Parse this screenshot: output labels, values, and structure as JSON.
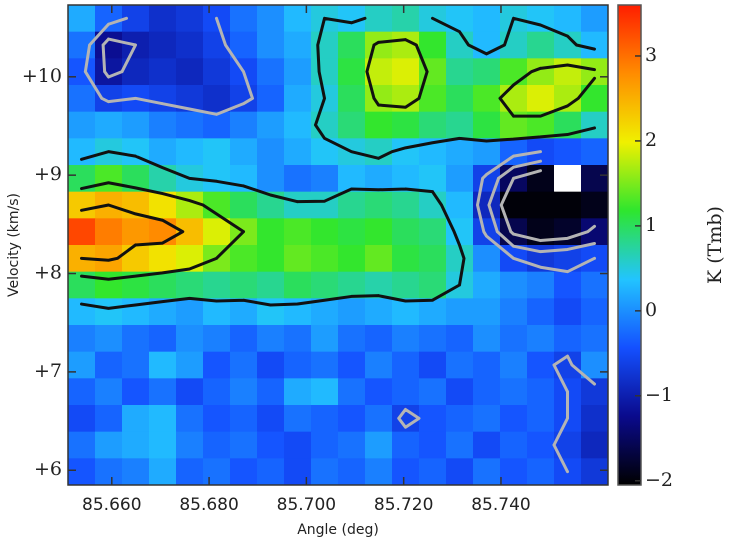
{
  "chart_data": {
    "type": "heatmap",
    "xlabel": "Angle (deg)",
    "ylabel": "Velocity (km/s)",
    "colorbar_label": "K (Tmb)",
    "xlim": [
      85.651,
      85.762
    ],
    "ylim": [
      5.85,
      10.73
    ],
    "zlim": [
      -2.05,
      3.6
    ],
    "xticks": [
      {
        "value": 85.66,
        "label": "85.660"
      },
      {
        "value": 85.68,
        "label": "85.680"
      },
      {
        "value": 85.7,
        "label": "85.700"
      },
      {
        "value": 85.72,
        "label": "85.720"
      },
      {
        "value": 85.74,
        "label": "85.740"
      }
    ],
    "yticks": [
      {
        "value": 6,
        "label": "+6"
      },
      {
        "value": 7,
        "label": "+7"
      },
      {
        "value": 8,
        "label": "+8"
      },
      {
        "value": 9,
        "label": "+9"
      },
      {
        "value": 10,
        "label": "+10"
      }
    ],
    "zticks": [
      3,
      2,
      1,
      0,
      {
        "value": -1,
        "label": "−1"
      },
      {
        "value": -2,
        "label": "−2"
      }
    ],
    "colormap": [
      "#000000",
      "#0a0a8c",
      "#1450ff",
      "#22c4ff",
      "#2ee62e",
      "#f0f000",
      "#ff8c00",
      "#ff1e00"
    ],
    "contours": [
      {
        "level": -1.5,
        "color": "#b4b4b4"
      },
      {
        "level": -1,
        "color": "#b4b4b4"
      },
      {
        "level": -0.5,
        "color": "#b4b4b4"
      },
      {
        "level": 0.5,
        "color": "#111111"
      },
      {
        "level": 1.5,
        "color": "#111111"
      },
      {
        "level": 2.5,
        "color": "#111111"
      }
    ],
    "values": [
      [
        0.2,
        -0.3,
        -0.6,
        -0.8,
        -0.7,
        -0.5,
        -0.2,
        0.0,
        0.3,
        0.5,
        0.4,
        0.6,
        0.7,
        0.5,
        0.4,
        0.3,
        0.5,
        0.4,
        0.3,
        0.1
      ],
      [
        -0.2,
        -1.2,
        -1.0,
        -0.9,
        -0.8,
        -0.6,
        -0.3,
        0.0,
        0.2,
        0.6,
        1.0,
        1.6,
        1.7,
        1.2,
        0.6,
        0.3,
        0.6,
        0.8,
        0.6,
        0.3
      ],
      [
        -0.4,
        -1.1,
        -0.9,
        -0.8,
        -0.9,
        -0.7,
        -0.5,
        -0.2,
        0.1,
        0.6,
        1.1,
        1.8,
        1.9,
        1.4,
        0.8,
        0.9,
        1.3,
        1.6,
        1.8,
        1.6
      ],
      [
        -0.2,
        -0.6,
        -0.5,
        -0.6,
        -0.7,
        -0.8,
        -0.6,
        -0.3,
        0.2,
        0.5,
        1.0,
        1.6,
        1.7,
        1.3,
        1.0,
        1.3,
        1.7,
        1.9,
        1.7,
        1.2
      ],
      [
        0.1,
        0.2,
        0.1,
        -0.1,
        -0.2,
        -0.3,
        -0.1,
        0.1,
        0.3,
        0.6,
        0.9,
        1.2,
        1.1,
        0.9,
        0.8,
        1.1,
        1.4,
        1.3,
        1.0,
        0.6
      ],
      [
        0.3,
        0.5,
        0.4,
        0.2,
        0.3,
        0.4,
        0.2,
        0.0,
        0.2,
        0.4,
        0.5,
        0.6,
        0.4,
        0.3,
        0.2,
        0.1,
        -0.3,
        -0.5,
        -0.4,
        -0.3
      ],
      [
        1.0,
        1.3,
        1.0,
        0.7,
        0.5,
        0.4,
        0.3,
        0.0,
        -0.2,
        -0.1,
        0.3,
        0.2,
        0.3,
        0.4,
        0.1,
        -0.6,
        -1.5,
        -1.9,
        null,
        -1.6
      ],
      [
        2.3,
        2.5,
        2.4,
        2.1,
        1.7,
        1.3,
        1.0,
        0.8,
        0.6,
        0.6,
        0.8,
        0.9,
        0.8,
        0.6,
        0.3,
        -0.9,
        -2.0,
        -2.0,
        -2.0,
        -1.9
      ],
      [
        3.3,
        2.9,
        2.7,
        2.8,
        2.4,
        1.9,
        1.5,
        1.2,
        1.3,
        1.2,
        1.1,
        1.2,
        1.0,
        0.9,
        0.4,
        -0.6,
        -1.6,
        -1.9,
        -1.8,
        -1.4
      ],
      [
        2.5,
        2.6,
        2.3,
        2.1,
        1.9,
        1.5,
        1.3,
        1.2,
        1.4,
        1.3,
        1.2,
        1.4,
        1.1,
        1.0,
        0.6,
        0.0,
        -0.5,
        -0.7,
        -0.6,
        -0.5
      ],
      [
        1.0,
        1.2,
        1.1,
        1.0,
        0.9,
        0.8,
        0.9,
        0.8,
        1.0,
        0.9,
        0.8,
        0.7,
        0.8,
        0.9,
        0.5,
        0.2,
        0.0,
        -0.1,
        -0.4,
        -0.2
      ],
      [
        0.3,
        0.4,
        0.3,
        0.2,
        0.1,
        0.3,
        0.2,
        0.4,
        0.3,
        0.2,
        0.1,
        0.2,
        0.3,
        0.2,
        0.1,
        0.1,
        -0.1,
        -0.3,
        -0.5,
        -0.3
      ],
      [
        -0.1,
        0.0,
        -0.2,
        -0.3,
        0.0,
        -0.1,
        -0.3,
        -0.1,
        -0.2,
        0.1,
        -0.2,
        -0.3,
        -0.1,
        -0.2,
        -0.3,
        0.0,
        -0.2,
        -0.1,
        -0.3,
        -0.2
      ],
      [
        0.1,
        -0.3,
        -0.2,
        0.3,
        0.1,
        -0.4,
        -0.2,
        -0.5,
        -0.3,
        -0.2,
        -0.4,
        -0.1,
        -0.3,
        -0.5,
        -0.2,
        -0.3,
        -0.1,
        -0.4,
        -0.6,
        0.0
      ],
      [
        -0.3,
        -0.1,
        -0.4,
        -0.2,
        -0.5,
        -0.3,
        -0.1,
        -0.3,
        0.2,
        0.3,
        -0.2,
        -0.4,
        -0.3,
        -0.2,
        -0.5,
        -0.3,
        -0.2,
        -0.3,
        -0.5,
        -0.7
      ],
      [
        -0.5,
        -0.3,
        0.2,
        0.3,
        -0.2,
        -0.4,
        -0.3,
        -0.5,
        -0.2,
        -0.3,
        -0.4,
        -0.2,
        -0.6,
        -0.4,
        -0.3,
        -0.2,
        -0.4,
        -0.3,
        -0.5,
        -0.8
      ],
      [
        -0.2,
        0.1,
        0.2,
        0.3,
        -0.1,
        -0.3,
        -0.2,
        -0.4,
        -0.5,
        -0.3,
        -0.2,
        0.1,
        -0.3,
        -0.4,
        -0.2,
        -0.5,
        -0.3,
        -0.4,
        -0.6,
        -0.9
      ],
      [
        -0.4,
        -0.2,
        -0.1,
        0.2,
        -0.3,
        -0.2,
        -0.4,
        -0.3,
        -0.5,
        -0.2,
        -0.3,
        -0.1,
        -0.4,
        -0.3,
        -0.5,
        -0.2,
        -0.4,
        -0.3,
        -0.5,
        -0.7
      ]
    ]
  }
}
